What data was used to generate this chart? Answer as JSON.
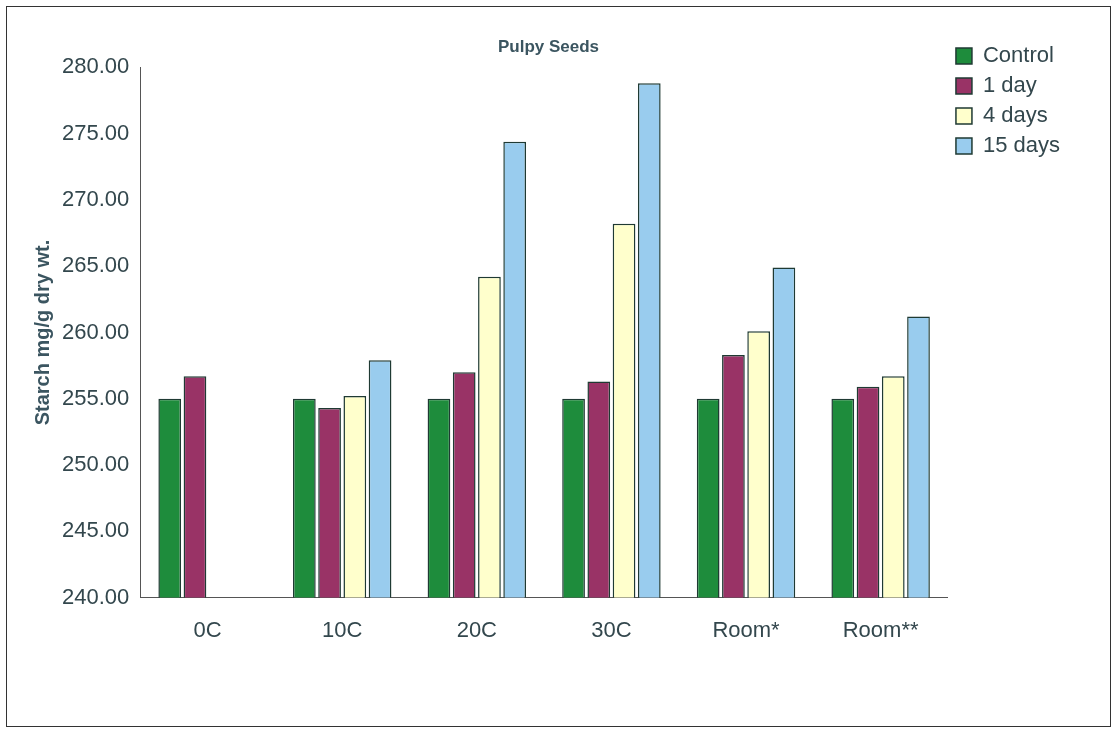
{
  "chart_data": {
    "type": "bar",
    "title": "Pulpy Seeds",
    "ylabel": "Starch mg/g dry wt.",
    "categories": [
      "0C",
      "10C",
      "20C",
      "30C",
      "Room*",
      "Room**"
    ],
    "series": [
      {
        "name": "Control",
        "color": "#1e8c3c",
        "values": [
          255.0,
          255.0,
          255.0,
          255.0,
          255.0,
          255.0
        ]
      },
      {
        "name": "1 day",
        "color": "#993366",
        "values": [
          256.7,
          254.3,
          257.0,
          256.3,
          258.3,
          255.9
        ]
      },
      {
        "name": "4 days",
        "color": "#ffffcc",
        "values": [
          null,
          255.2,
          264.2,
          268.2,
          260.1,
          256.7
        ]
      },
      {
        "name": "15 days",
        "color": "#99ccee",
        "values": [
          null,
          257.9,
          274.4,
          278.8,
          264.9,
          261.2
        ]
      }
    ],
    "ylim": [
      240,
      280
    ],
    "yticks": [
      {
        "value": 240,
        "label": "240.00"
      },
      {
        "value": 245,
        "label": "245.00"
      },
      {
        "value": 250,
        "label": "250.00"
      },
      {
        "value": 255,
        "label": "255.00"
      },
      {
        "value": 260,
        "label": "260.00"
      },
      {
        "value": 265,
        "label": "265.00"
      },
      {
        "value": 270,
        "label": "270.00"
      },
      {
        "value": 275,
        "label": "275.00"
      },
      {
        "value": 280,
        "label": "280.00"
      }
    ],
    "legend": "top right"
  }
}
